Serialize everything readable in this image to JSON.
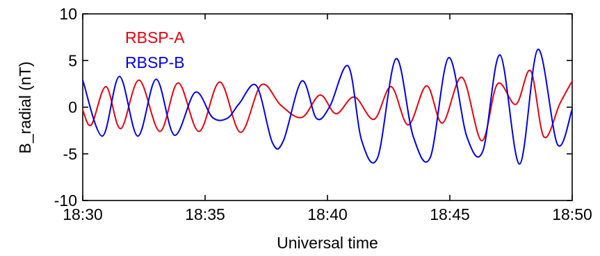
{
  "chart_data": {
    "type": "line",
    "xlabel": "Universal time",
    "ylabel": "B_radial (nT)",
    "xlim": [
      0,
      20
    ],
    "ylim": [
      -10,
      10
    ],
    "grid": false,
    "legend_position": "top-left",
    "x_ticks": [
      {
        "value": 0,
        "label": "18:30"
      },
      {
        "value": 5,
        "label": "18:35"
      },
      {
        "value": 10,
        "label": "18:40"
      },
      {
        "value": 15,
        "label": "18:45"
      },
      {
        "value": 20,
        "label": "18:50"
      }
    ],
    "y_ticks": [
      {
        "value": -10,
        "label": "-10"
      },
      {
        "value": -5,
        "label": "-5"
      },
      {
        "value": 0,
        "label": "0"
      },
      {
        "value": 5,
        "label": "5"
      },
      {
        "value": 10,
        "label": "10"
      }
    ],
    "series": [
      {
        "name": "RBSP-A",
        "color": "#e8000b",
        "x": [
          0,
          0.35,
          0.95,
          1.55,
          2.3,
          3.15,
          3.9,
          4.75,
          5.6,
          6.45,
          7.3,
          8.1,
          8.95,
          9.7,
          10.35,
          11.1,
          11.9,
          12.6,
          13.3,
          14.05,
          14.7,
          15.5,
          16.3,
          16.95,
          17.7,
          18.3,
          18.85,
          19.5,
          20
        ],
        "values": [
          -0.3,
          -1.9,
          2.2,
          -2.3,
          2.9,
          -2.6,
          2.6,
          -2.6,
          2.7,
          -2.7,
          2.4,
          0.2,
          -1.1,
          1.3,
          -0.7,
          1.1,
          -1.3,
          2.2,
          -1.9,
          2.3,
          -1.7,
          3.2,
          -3.6,
          2.5,
          0.3,
          3.9,
          -3.2,
          0.4,
          2.8
        ]
      },
      {
        "name": "RBSP-B",
        "color": "#0000e6",
        "x": [
          0,
          0.8,
          1.5,
          2.25,
          3.0,
          3.75,
          4.6,
          5.3,
          5.9,
          6.4,
          7.1,
          7.75,
          8.2,
          8.95,
          9.55,
          10.1,
          10.85,
          11.4,
          12.05,
          12.8,
          13.5,
          14.2,
          14.95,
          15.7,
          16.35,
          17.05,
          17.85,
          18.6,
          19.4,
          20
        ],
        "values": [
          2.9,
          -3.1,
          3.3,
          -3.1,
          3.0,
          -3.0,
          1.6,
          -1.1,
          -1.2,
          0.4,
          2.3,
          -3.8,
          -3.6,
          2.8,
          -1.2,
          0.1,
          4.4,
          -3.6,
          -5.4,
          5.2,
          -3.1,
          -5.4,
          5.3,
          -3.2,
          -4.7,
          5.6,
          -6.1,
          6.2,
          -4.0,
          -0.2
        ]
      }
    ]
  }
}
